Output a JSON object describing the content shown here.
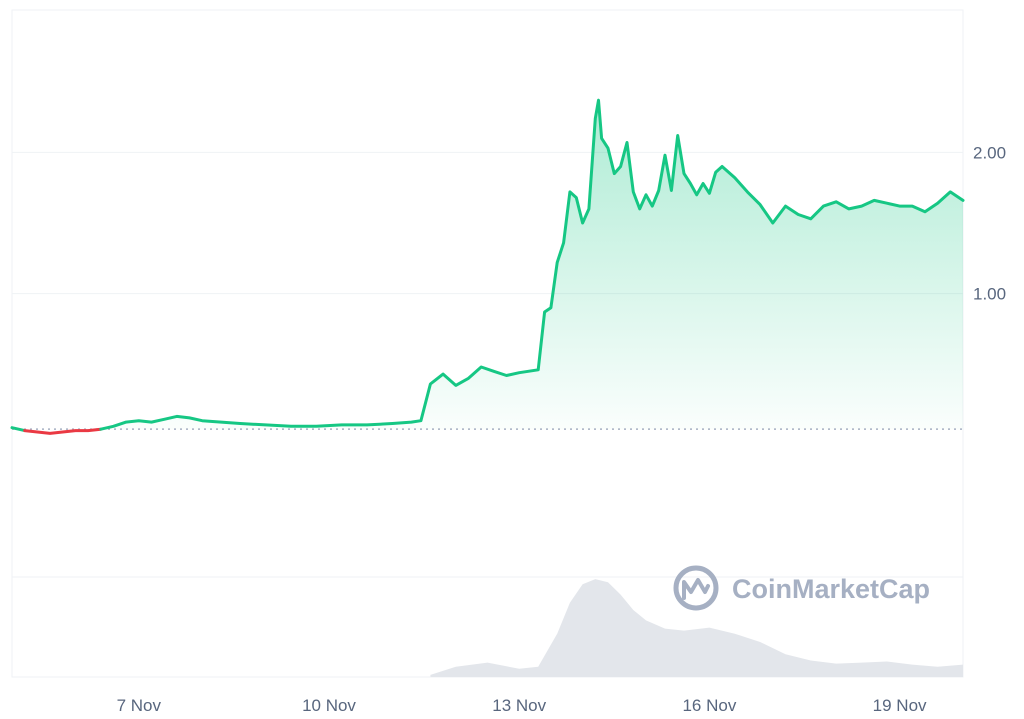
{
  "chart_data": {
    "type": "area",
    "title": "",
    "xlabel": "",
    "ylabel": "",
    "x_ticks": [
      "7 Nov",
      "10 Nov",
      "13 Nov",
      "16 Nov",
      "19 Nov"
    ],
    "y_ticks": [
      "1.00",
      "2.00"
    ],
    "ylim": [
      -0.8,
      3.0
    ],
    "reference_price": 0.04,
    "grid": true,
    "legend": "none",
    "colors": {
      "up": "#16c784",
      "down": "#ea3943",
      "volume": "#e3e6eb",
      "grid": "#eff2f5",
      "reference": "#a6b0c3"
    },
    "series": [
      {
        "x": [
          5.0,
          5.2,
          5.4,
          5.6,
          5.8,
          6.0,
          6.2,
          6.4,
          6.6,
          6.8,
          7.0,
          7.2,
          7.4,
          7.6,
          7.8,
          8.0,
          8.3,
          8.6,
          9.0,
          9.4,
          9.8,
          10.2,
          10.6,
          11.0,
          11.3,
          11.45,
          11.6,
          11.8,
          12.0,
          12.2,
          12.4,
          12.6,
          12.8,
          13.0,
          13.3,
          13.4,
          13.5,
          13.6,
          13.7,
          13.8,
          13.9,
          14.0,
          14.1,
          14.2,
          14.25,
          14.3,
          14.4,
          14.5,
          14.6,
          14.7,
          14.8,
          14.9,
          15.0,
          15.1,
          15.2,
          15.3,
          15.4,
          15.5,
          15.6,
          15.7,
          15.8,
          15.9,
          16.0,
          16.1,
          16.2,
          16.4,
          16.6,
          16.8,
          17.0,
          17.2,
          17.4,
          17.6,
          17.8,
          18.0,
          18.2,
          18.4,
          18.6,
          18.8,
          19.0,
          19.2,
          19.4,
          19.6,
          19.8,
          20.0
        ],
        "y": [
          0.05,
          0.03,
          0.02,
          0.01,
          0.02,
          0.03,
          0.03,
          0.04,
          0.06,
          0.09,
          0.1,
          0.09,
          0.11,
          0.13,
          0.12,
          0.1,
          0.09,
          0.08,
          0.07,
          0.06,
          0.06,
          0.07,
          0.07,
          0.08,
          0.09,
          0.1,
          0.36,
          0.43,
          0.35,
          0.4,
          0.48,
          0.45,
          0.42,
          0.44,
          0.46,
          0.87,
          0.9,
          1.22,
          1.36,
          1.72,
          1.68,
          1.5,
          1.6,
          2.24,
          2.37,
          2.1,
          2.03,
          1.85,
          1.9,
          2.07,
          1.72,
          1.6,
          1.7,
          1.62,
          1.73,
          1.98,
          1.73,
          2.12,
          1.85,
          1.78,
          1.7,
          1.78,
          1.71,
          1.86,
          1.9,
          1.82,
          1.72,
          1.63,
          1.5,
          1.62,
          1.56,
          1.53,
          1.62,
          1.65,
          1.6,
          1.62,
          1.66,
          1.64,
          1.62,
          1.62,
          1.58,
          1.64,
          1.72,
          1.66
        ]
      }
    ],
    "volume": {
      "x": [
        11.6,
        12.0,
        12.5,
        13.0,
        13.3,
        13.6,
        13.8,
        14.0,
        14.2,
        14.4,
        14.6,
        14.8,
        15.0,
        15.3,
        15.6,
        16.0,
        16.4,
        16.8,
        17.2,
        17.6,
        18.0,
        18.4,
        18.8,
        19.2,
        19.6,
        20.0
      ],
      "y": [
        0.02,
        0.1,
        0.14,
        0.08,
        0.1,
        0.42,
        0.72,
        0.9,
        0.95,
        0.92,
        0.8,
        0.65,
        0.55,
        0.47,
        0.45,
        0.48,
        0.42,
        0.34,
        0.22,
        0.16,
        0.13,
        0.14,
        0.15,
        0.12,
        0.1,
        0.12
      ],
      "ymax": 1.0
    },
    "watermark": "CoinMarketCap"
  }
}
